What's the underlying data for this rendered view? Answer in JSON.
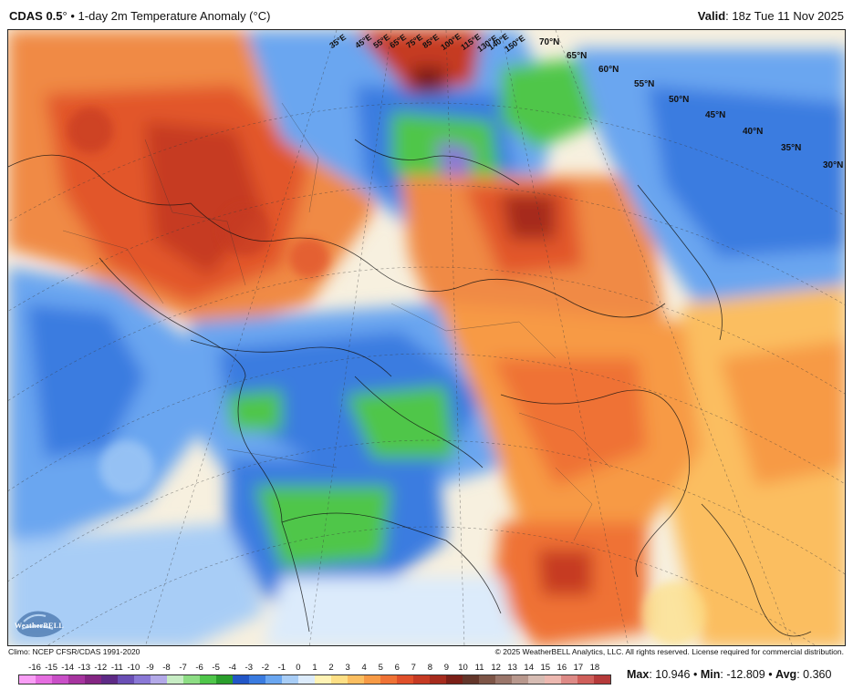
{
  "header": {
    "model": "CDAS 0.5",
    "model_suffix": "°",
    "separator": "•",
    "product": "1-day 2m Temperature Anomaly (",
    "unit": "°C",
    "product_end": ")",
    "valid_label": "Valid",
    "valid_value": ": 18z Tue 11 Nov 2025"
  },
  "map": {
    "lat_labels": [
      "70°N",
      "65°N",
      "60°N",
      "55°N",
      "50°N",
      "45°N",
      "40°N",
      "35°N",
      "30°N"
    ],
    "lon_labels": [
      "35°E",
      "45°E",
      "55°E",
      "65°E",
      "75°E",
      "85°E",
      "100°E",
      "115°E",
      "130°E",
      "140°E",
      "150°E"
    ],
    "logo_text": "WeatherBELL"
  },
  "footer": {
    "climo": "Climo: NCEP CFSR/CDAS 1991-2020",
    "copyright": "© 2025 WeatherBELL Analytics, LLC. All rights reserved. License required for commercial distribution."
  },
  "colorbar": {
    "labels": [
      "-16",
      "-15",
      "-14",
      "-13",
      "-12",
      "-11",
      "-10",
      "-9",
      "-8",
      "-7",
      "-6",
      "-5",
      "-4",
      "-3",
      "-2",
      "-1",
      "0",
      "1",
      "2",
      "3",
      "4",
      "5",
      "6",
      "7",
      "8",
      "9",
      "10",
      "11",
      "12",
      "13",
      "14",
      "15",
      "16",
      "17",
      "18"
    ],
    "colors": [
      "#f99ef5",
      "#e56ee0",
      "#c94fc7",
      "#a6349f",
      "#842683",
      "#5e2a86",
      "#6a4fb5",
      "#8a78d6",
      "#b3a9e8",
      "#c7ecc4",
      "#8ddd84",
      "#4fc64a",
      "#2a9e2c",
      "#2256c7",
      "#3a7be0",
      "#6aa6f0",
      "#a8cdf6",
      "#dcebfb",
      "#fff3b5",
      "#fddf85",
      "#fbbe60",
      "#f79a45",
      "#ef7235",
      "#e0502a",
      "#c63a23",
      "#a62b1d",
      "#7b1f17",
      "#63362a",
      "#7d5547",
      "#9a766a",
      "#b8988d",
      "#d6bcb3",
      "#ecb8b0",
      "#dd8a86",
      "#cf5f5a",
      "#b53a3a"
    ]
  },
  "stats": {
    "max_label": "Max",
    "max_value": ": 10.946 • ",
    "min_label": "Min",
    "min_value": ": -12.809 • ",
    "avg_label": "Avg",
    "avg_value": ": 0.360"
  }
}
